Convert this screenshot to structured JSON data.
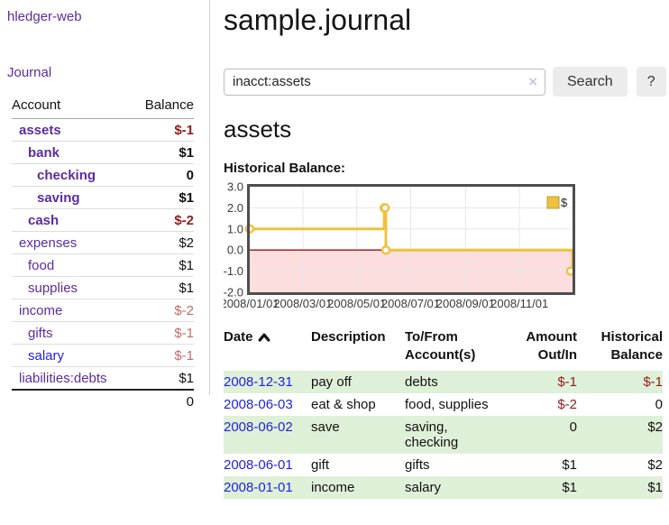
{
  "sidebar": {
    "app_title": "hledger-web",
    "nav_journal": "Journal",
    "accounts_table": {
      "col_account": "Account",
      "col_balance": "Balance",
      "rows": [
        {
          "name": "assets",
          "indent": 0,
          "bold": true,
          "balance": "$-1",
          "balance_style": "neg-strong"
        },
        {
          "name": "bank",
          "indent": 1,
          "bold": true,
          "balance": "$1",
          "balance_style": "pos-strong"
        },
        {
          "name": "checking",
          "indent": 2,
          "bold": true,
          "balance": "0",
          "balance_style": "pos-strong"
        },
        {
          "name": "saving",
          "indent": 2,
          "bold": true,
          "balance": "$1",
          "balance_style": "pos-strong"
        },
        {
          "name": "cash",
          "indent": 1,
          "bold": true,
          "balance": "$-2",
          "balance_style": "neg-strong"
        },
        {
          "name": "expenses",
          "indent": 0,
          "bold": false,
          "balance": "$2",
          "balance_style": "pos"
        },
        {
          "name": "food",
          "indent": 1,
          "bold": false,
          "balance": "$1",
          "balance_style": "pos"
        },
        {
          "name": "supplies",
          "indent": 1,
          "bold": false,
          "balance": "$1",
          "balance_style": "pos"
        },
        {
          "name": "income",
          "indent": 0,
          "bold": false,
          "balance": "$-2",
          "balance_style": "neg-soft"
        },
        {
          "name": "gifts",
          "indent": 1,
          "bold": false,
          "balance": "$-1",
          "balance_style": "neg-soft"
        },
        {
          "name": "salary",
          "indent": 1,
          "bold": false,
          "balance": "$-1",
          "balance_style": "neg-soft",
          "link_color": "blue"
        },
        {
          "name": "liabilities:debts",
          "indent": 0,
          "bold": false,
          "balance": "$1",
          "balance_style": "pos"
        }
      ],
      "total": "0"
    }
  },
  "header": {
    "title": "sample.journal"
  },
  "search": {
    "value": "inacct:assets",
    "clear_icon": "×",
    "button_label": "Search",
    "help_label": "?"
  },
  "account_page": {
    "heading": "assets",
    "chart_label": "Historical Balance:"
  },
  "chart_data": {
    "type": "line",
    "title": "Historical Balance:",
    "step": "step-after",
    "series": [
      {
        "name": "$",
        "color": "#edc240",
        "points": [
          [
            "2008-01-01",
            1
          ],
          [
            "2008-06-01",
            2
          ],
          [
            "2008-06-02",
            2
          ],
          [
            "2008-06-03",
            0
          ],
          [
            "2008-12-31",
            -1
          ]
        ]
      }
    ],
    "xlim": [
      "2008-01-01",
      "2008-12-31"
    ],
    "ylim": [
      -2,
      3
    ],
    "yticks": [
      3.0,
      2.0,
      1.0,
      0.0,
      -1.0,
      -2.0
    ],
    "xticks": [
      "2008/01/01",
      "2008/03/01",
      "2008/05/01",
      "2008/07/01",
      "2008/09/01",
      "2008/11/01"
    ],
    "grid": true,
    "legend_position": "top-right",
    "negative_region_color": "#fcdede",
    "zero_line_color": "#a01010"
  },
  "transactions": {
    "headers": {
      "date": "Date",
      "description": "Description",
      "tofrom_line1": "To/From",
      "tofrom_line2": "Account(s)",
      "amount_line1": "Amount",
      "amount_line2": "Out/In",
      "historical_line1": "Historical",
      "historical_line2": "Balance"
    },
    "rows": [
      {
        "date": "2008-12-31",
        "description": "pay off",
        "accounts": "debts",
        "amount": "$-1",
        "amount_neg": true,
        "balance": "$-1",
        "balance_neg": true
      },
      {
        "date": "2008-06-03",
        "description": "eat & shop",
        "accounts": "food, supplies",
        "amount": "$-2",
        "amount_neg": true,
        "balance": "0",
        "balance_neg": false
      },
      {
        "date": "2008-06-02",
        "description": "save",
        "accounts": "saving, checking",
        "amount": "0",
        "amount_neg": false,
        "balance": "$2",
        "balance_neg": false
      },
      {
        "date": "2008-06-01",
        "description": "gift",
        "accounts": "gifts",
        "amount": "$1",
        "amount_neg": false,
        "balance": "$2",
        "balance_neg": false
      },
      {
        "date": "2008-01-01",
        "description": "income",
        "accounts": "salary",
        "amount": "$1",
        "amount_neg": false,
        "balance": "$1",
        "balance_neg": false
      }
    ]
  },
  "colors": {
    "link_purple": "#5b2d9e",
    "link_blue": "#2222e0",
    "negative_strong": "#8f1d1d",
    "negative_soft": "#c76a6a",
    "row_green": "#dff0d8",
    "chart_line": "#edc240",
    "chart_negative_fill": "#fcdede",
    "chart_zero_line": "#a01010",
    "button_gray": "#ececec"
  }
}
